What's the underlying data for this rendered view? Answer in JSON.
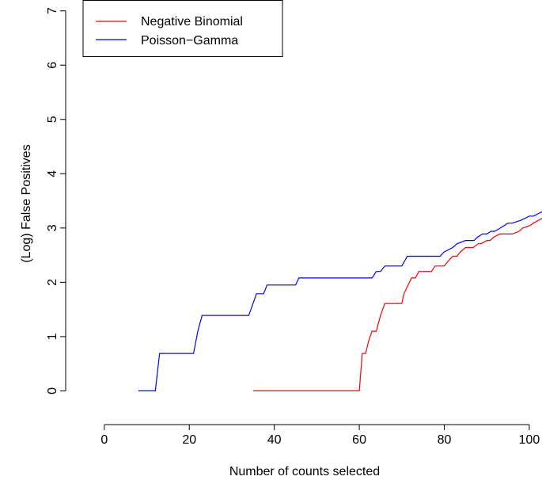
{
  "chart_data": {
    "type": "line",
    "title": "",
    "xlabel": "Number of counts selected",
    "ylabel": "(Log) False Positives",
    "xlim": [
      -5,
      103
    ],
    "ylim": [
      -0.3,
      7.2
    ],
    "xticks": [
      0,
      20,
      40,
      60,
      80,
      100
    ],
    "yticks": [
      0,
      1,
      2,
      3,
      4,
      5,
      6,
      7
    ],
    "grid": false,
    "legend": "top-left",
    "series": [
      {
        "name": "Negative Binomial",
        "color": "#ff0000",
        "x": [
          35,
          60,
          60.7,
          61.5,
          62.2,
          63,
          64,
          65,
          66,
          66.8,
          68,
          70,
          70.5,
          71.5,
          72.3,
          73.2,
          74,
          75,
          77,
          77.8,
          79,
          80,
          81,
          82,
          83,
          83.8,
          85,
          86,
          86.8,
          88,
          88.7,
          90,
          90.8,
          91.6,
          93,
          93.8,
          96,
          97.6,
          98.5,
          100,
          101,
          103
        ],
        "y": [
          0,
          0,
          0.69,
          0.69,
          0.92,
          1.1,
          1.1,
          1.39,
          1.61,
          1.61,
          1.61,
          1.61,
          1.79,
          1.95,
          2.08,
          2.08,
          2.2,
          2.2,
          2.2,
          2.3,
          2.3,
          2.3,
          2.4,
          2.48,
          2.48,
          2.56,
          2.64,
          2.64,
          2.64,
          2.71,
          2.71,
          2.77,
          2.77,
          2.83,
          2.89,
          2.89,
          2.89,
          2.94,
          3.0,
          3.04,
          3.09,
          3.18
        ]
      },
      {
        "name": "Poisson−Gamma",
        "color": "#0000ff",
        "x": [
          8,
          12,
          13,
          21,
          22,
          23,
          34,
          35,
          35.8,
          36.6,
          37.5,
          38.3,
          45,
          45.8,
          63,
          64,
          65,
          66,
          70,
          71.3,
          79,
          80,
          82,
          83,
          85,
          87,
          87.8,
          89,
          90,
          91,
          91.8,
          93,
          94,
          95,
          96,
          98,
          99,
          100,
          101,
          102,
          103
        ],
        "y": [
          0,
          0,
          0.69,
          0.69,
          1.1,
          1.39,
          1.39,
          1.61,
          1.79,
          1.79,
          1.79,
          1.95,
          1.95,
          2.08,
          2.08,
          2.2,
          2.2,
          2.3,
          2.3,
          2.48,
          2.48,
          2.56,
          2.64,
          2.71,
          2.77,
          2.77,
          2.83,
          2.89,
          2.89,
          2.94,
          2.94,
          2.99,
          3.04,
          3.09,
          3.09,
          3.14,
          3.18,
          3.22,
          3.22,
          3.26,
          3.3
        ]
      }
    ]
  }
}
